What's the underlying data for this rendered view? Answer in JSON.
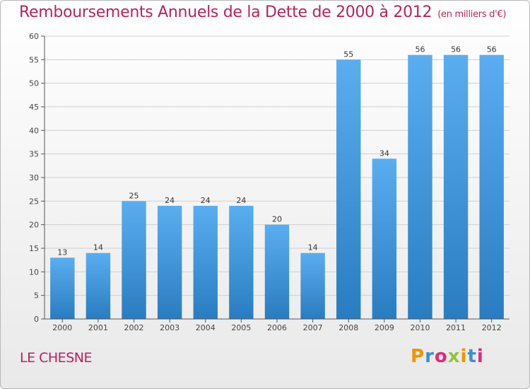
{
  "header": {
    "title": "Remboursements Annuels de la Dette de 2000 à 2012",
    "unit": "(en milliers d'€)"
  },
  "footer": {
    "city": "LE CHESNE",
    "logo_text": "Proxiti",
    "logo_colors": [
      "#f29400",
      "#3a8fd6",
      "#e0287a",
      "#8cc63f",
      "#f29400",
      "#3a8fd6",
      "#e0287a"
    ]
  },
  "chart_data": {
    "type": "bar",
    "title": "Remboursements Annuels de la Dette de 2000 à 2012",
    "subtitle": "(en milliers d'€)",
    "categories": [
      "2000",
      "2001",
      "2002",
      "2003",
      "2004",
      "2005",
      "2006",
      "2007",
      "2008",
      "2009",
      "2010",
      "2011",
      "2012"
    ],
    "values": [
      13,
      14,
      25,
      24,
      24,
      24,
      20,
      14,
      55,
      34,
      56,
      56,
      56
    ],
    "ylim": [
      0,
      60
    ],
    "yticks": [
      0,
      5,
      10,
      15,
      20,
      25,
      30,
      35,
      40,
      45,
      50,
      55,
      60
    ],
    "grid": true,
    "bar_color_top": "#5aaef0",
    "bar_color_bottom": "#2a7cc0",
    "grid_color": "#cfcfcf"
  }
}
